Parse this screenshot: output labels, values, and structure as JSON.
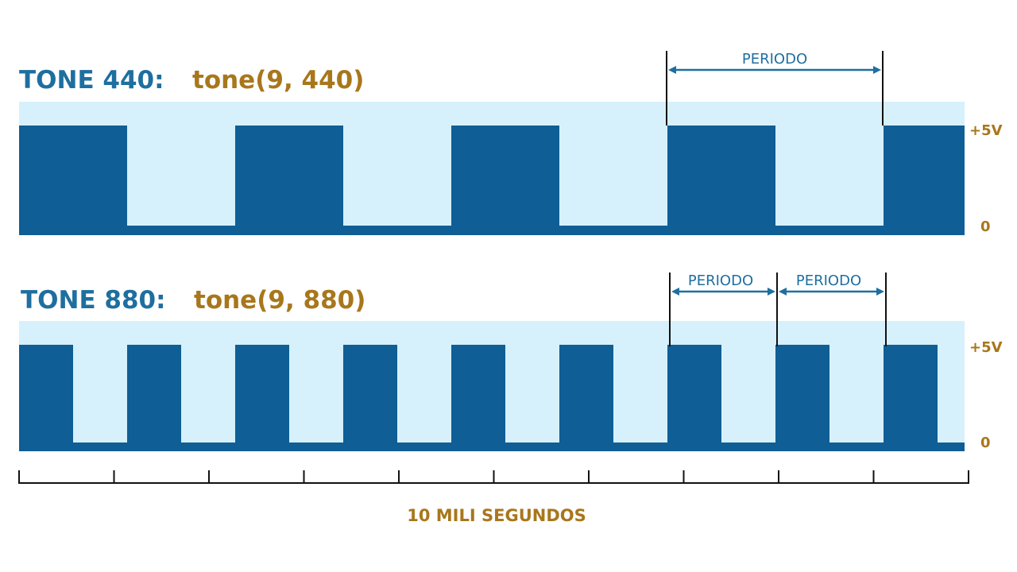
{
  "colors": {
    "background_band": "#d6f1fb",
    "signal": "#0f5e96",
    "label_blue": "#1e6fa0",
    "label_gold": "#a8771c",
    "marker": "#111111"
  },
  "panels": [
    {
      "id": "tone-440",
      "title_prefix": "TONE 440:",
      "title_code": "tone(9, 440)",
      "frequency_hz": 440,
      "high_label": "+5V",
      "low_label": "0",
      "period_labels": [
        "PERIODO"
      ]
    },
    {
      "id": "tone-880",
      "title_prefix": "TONE 880:",
      "title_code": "tone(9, 880)",
      "frequency_hz": 880,
      "high_label": "+5V",
      "low_label": "0",
      "period_labels": [
        "PERIODO",
        "PERIODO"
      ]
    }
  ],
  "time_scale": {
    "label": "10 MILI SEGUNDOS",
    "divisions": 10
  }
}
